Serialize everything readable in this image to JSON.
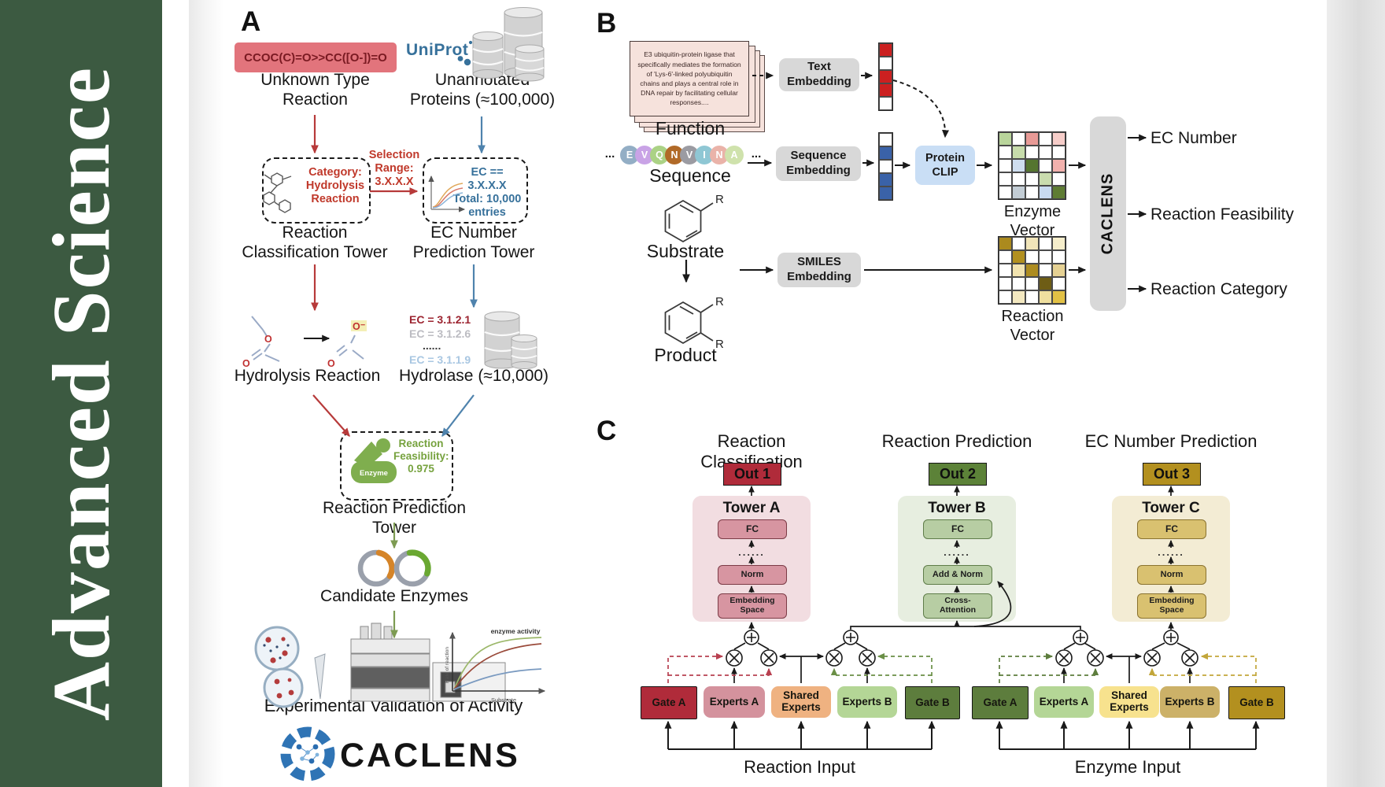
{
  "journal": {
    "title": "Advanced Science"
  },
  "palette": {
    "journal_green": "#3c5a41",
    "red_accent": "#b73a3a",
    "blue_accent": "#4f83ad",
    "olive_accent": "#7d9b52",
    "uniprot_blue": "#37719b",
    "smiles_box": "#e2747c"
  },
  "panelA": {
    "label": "A",
    "smiles": "CCOC(C)=O>>CC([O-])=O",
    "uniprot": "UniProt",
    "unknown_reaction": "Unknown Type\nReaction",
    "unannotated_proteins": "Unannotated\nProteins (≈100,000)",
    "classification_note": "Category:\nHydrolysis\nReaction",
    "selection_note": "Selection\nRange:\n3.X.X.X",
    "ec_filter_note": "EC == 3.X.X.X\nTotal: 10,000\nentries",
    "tower_classification": "Reaction\nClassification Tower",
    "tower_ec": "EC Number\nPrediction Tower",
    "hydrolysis_reaction": "Hydrolysis Reaction",
    "ec_list": [
      "EC = 3.1.2.1",
      "EC = 3.1.2.6",
      "......",
      "EC = 3.1.1.9"
    ],
    "hydrolase": "Hydrolase (≈10,000)",
    "enzyme_icon_label": "Enzyme",
    "feasibility_note": "Reaction\nFeasibility:\n0.975",
    "tower_prediction": "Reaction Prediction Tower",
    "candidate_enzymes": "Candidate Enzymes",
    "validation": "Experimental Validation of Activity",
    "logo_text": "CACLENS",
    "activity_plot": {
      "annotation": "enzyme activity",
      "ylabel": "Rate of reaction",
      "xlabel": "Substrate"
    }
  },
  "panelB": {
    "label": "B",
    "function_card": "E3 ubiquitin-protein ligase that specifically mediates the formation of 'Lys-6'-linked polyubiquitin chains and plays a central role in DNA repair by facilitating cellular responses....",
    "function_label": "Function",
    "ellipsis": "...",
    "sequence_letters": [
      "E",
      "V",
      "Q",
      "N",
      "V",
      "I",
      "N",
      "A"
    ],
    "sequence_colors": [
      "#93aec5",
      "#c9a3e6",
      "#abd285",
      "#b16a28",
      "#9b9ba2",
      "#8fc7d4",
      "#eab3a9",
      "#cfe2ac"
    ],
    "sequence_label": "Sequence",
    "substrate_label": "Substrate",
    "product_label": "Product",
    "r_group": "R",
    "text_embedding": "Text\nEmbedding",
    "sequence_embedding": "Sequence\nEmbedding",
    "smiles_embedding": "SMILES\nEmbedding",
    "protein_clip": "Protein\nCLIP",
    "text_vector_cells": [
      "#cc2020",
      "#ffffff",
      "#cc2020",
      "#cc2020",
      "#ffffff"
    ],
    "sequence_vector_cells": [
      "#ffffff",
      "#3a62a8",
      "#ffffff",
      "#3a62a8",
      "#3a62a8"
    ],
    "enzyme_vector_label": "Enzyme Vector",
    "reaction_vector_label": "Reaction Vector",
    "enzyme_vector_cells": [
      "#b9d59b",
      "#ffffff",
      "#e89a96",
      "#ffffff",
      "#f6cdc9",
      "#ffffff",
      "#c7dcab",
      "#ffffff",
      "#ffffff",
      "#ffffff",
      "#ffffff",
      "#cfdeef",
      "#55752f",
      "#ffffff",
      "#f2b1ad",
      "#ffffff",
      "#ffffff",
      "#ffffff",
      "#c9dcae",
      "#ffffff",
      "#ffffff",
      "#c3cdd5",
      "#ffffff",
      "#c8daf0",
      "#5e7c33"
    ],
    "reaction_vector_cells": [
      "#ab8a1e",
      "#ffffff",
      "#f1e5b9",
      "#ffffff",
      "#f6eecb",
      "#ffffff",
      "#b2901f",
      "#ffffff",
      "#ffffff",
      "#ffffff",
      "#ffffff",
      "#f1e3af",
      "#ad8c20",
      "#ffffff",
      "#e5d193",
      "#ffffff",
      "#ffffff",
      "#ffffff",
      "#6e5d15",
      "#ffffff",
      "#ffffff",
      "#f3e8c0",
      "#ffffff",
      "#efdf9f",
      "#e2c145"
    ],
    "caclens": "CACLENS",
    "outputs": [
      "EC Number",
      "Reaction Feasibility",
      "Reaction Category"
    ]
  },
  "panelC": {
    "label": "C",
    "columns": [
      {
        "title": "Reaction Classification",
        "out": "Out 1",
        "tower": "Tower A",
        "blocks": [
          "FC",
          "......",
          "Norm",
          "Embedding\nSpace"
        ]
      },
      {
        "title": "Reaction Prediction",
        "out": "Out 2",
        "tower": "Tower B",
        "blocks": [
          "FC",
          "......",
          "Add & Norm",
          "Cross-\nAttention"
        ]
      },
      {
        "title": "EC Number Prediction",
        "out": "Out 3",
        "tower": "Tower C",
        "blocks": [
          "FC",
          "......",
          "Norm",
          "Embedding\nSpace"
        ]
      }
    ],
    "moe_left": [
      "Gate A",
      "Experts A",
      "Shared\nExperts",
      "Experts B",
      "Gate B"
    ],
    "moe_right": [
      "Gate A",
      "Experts A",
      "Shared\nExperts",
      "Experts B",
      "Gate B"
    ],
    "input_left": "Reaction Input",
    "input_right": "Enzyme Input"
  }
}
